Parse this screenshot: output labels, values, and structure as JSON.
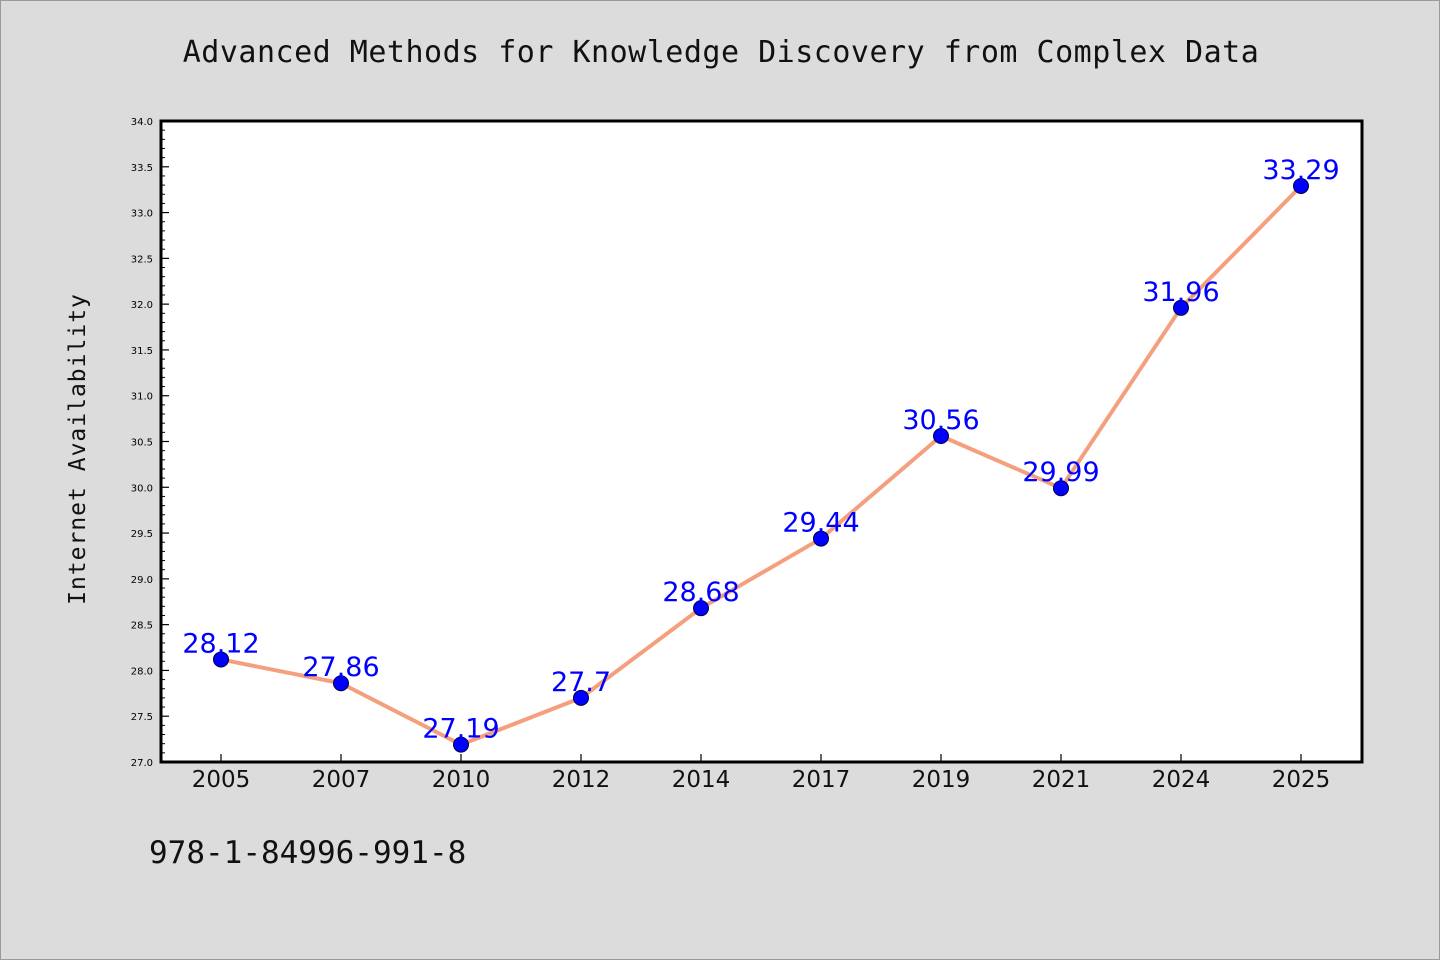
{
  "chart_data": {
    "type": "line",
    "title": "Advanced Methods for Knowledge Discovery from Complex Data",
    "xlabel": "",
    "ylabel": "Internet Availability",
    "categories": [
      "2005",
      "2007",
      "2010",
      "2012",
      "2014",
      "2017",
      "2019",
      "2021",
      "2024",
      "2025"
    ],
    "series": [
      {
        "values": [
          28.12,
          27.86,
          27.19,
          27.7,
          28.68,
          29.44,
          30.56,
          29.99,
          31.96,
          33.29
        ],
        "line_color": "#f4a07e",
        "marker_color": "#0000ff"
      }
    ],
    "ylim": [
      27.0,
      34.0
    ],
    "yticks": [
      "27.0",
      "27.5",
      "28.0",
      "28.5",
      "29.0",
      "29.5",
      "30.0",
      "30.5",
      "31.0",
      "31.5",
      "32.0",
      "32.5",
      "33.0",
      "33.5",
      "34.0"
    ],
    "data_labels": true,
    "label_color": "#0000ff",
    "grid": false,
    "legend": false
  },
  "footer": {
    "isbn": "978-1-84996-991-8"
  }
}
